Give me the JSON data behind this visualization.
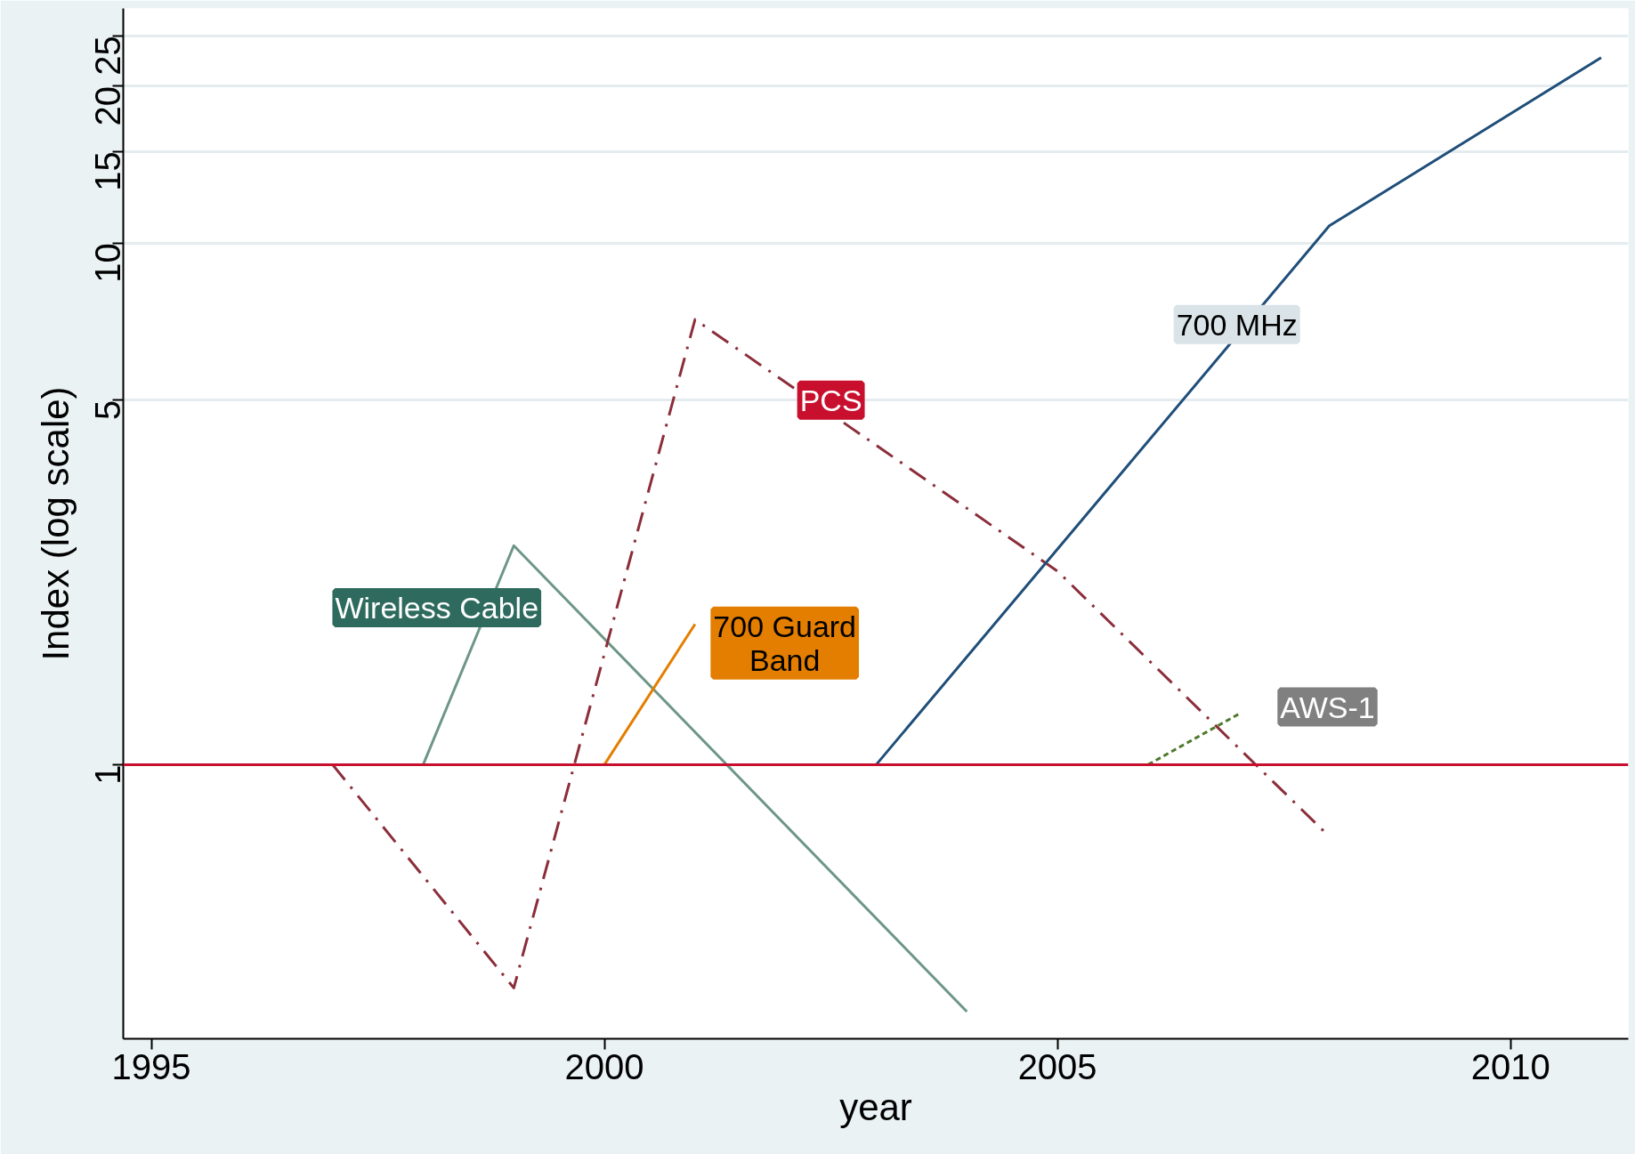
{
  "chart_data": {
    "type": "line",
    "xlabel": "year",
    "ylabel": "Index (log scale)",
    "log": "y",
    "grid": "y",
    "xlim": [
      1994.69,
      2011.3
    ],
    "ylim": [
      0.298,
      28.2
    ],
    "xticks": [
      1995,
      2000,
      2005,
      2010
    ],
    "yticks": [
      1,
      5,
      10,
      15,
      20,
      25
    ],
    "ref_lines": [
      {
        "axis": "y",
        "value": 1,
        "color": "#c8102e",
        "line_style": "solid"
      }
    ],
    "series": [
      {
        "name": "Wireless Cable",
        "color": "#6e9686",
        "line_style": "solid",
        "x": [
          1998,
          1999,
          2004
        ],
        "values": [
          1,
          2.63,
          0.336
        ]
      },
      {
        "name": "PCS",
        "color": "#8b2e3a",
        "line_style": "dashdot",
        "x": [
          1997,
          1999,
          2001,
          2005,
          2008
        ],
        "values": [
          1,
          0.373,
          7.14,
          2.35,
          0.728
        ]
      },
      {
        "name": "700 Guard Band",
        "color": "#e37e00",
        "line_style": "solid",
        "x": [
          2000,
          2001
        ],
        "values": [
          1,
          1.86
        ]
      },
      {
        "name": "700 MHz",
        "color": "#1f4e79",
        "line_style": "solid",
        "x": [
          2003,
          2008,
          2011
        ],
        "values": [
          1,
          10.8,
          22.7
        ]
      },
      {
        "name": "AWS-1",
        "color": "#4e7a2e",
        "line_style": "dashed",
        "x": [
          2006,
          2007
        ],
        "values": [
          1,
          1.25
        ]
      }
    ]
  }
}
